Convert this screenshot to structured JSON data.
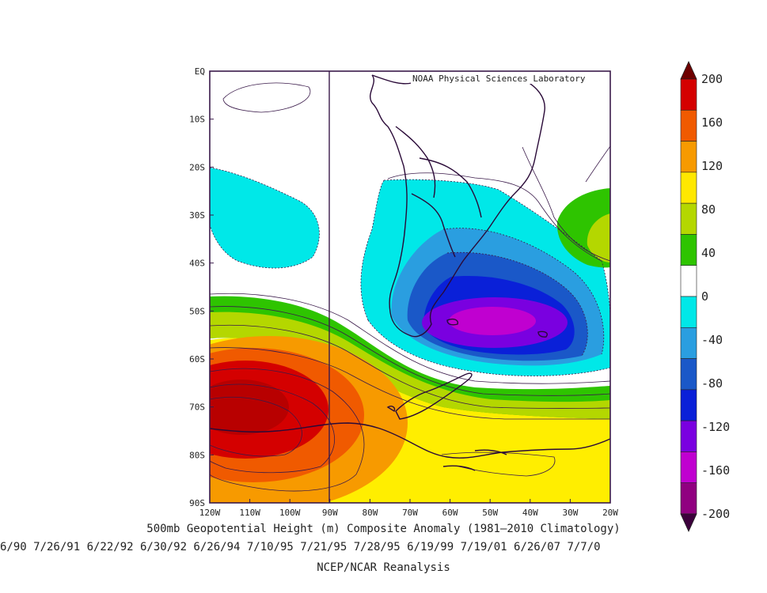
{
  "map": {
    "credit": "NOAA Physical Sciences Laboratory",
    "lat_labels": [
      "EQ",
      "10S",
      "20S",
      "30S",
      "40S",
      "50S",
      "60S",
      "70S",
      "80S",
      "90S"
    ],
    "lon_labels": [
      "120W",
      "110W",
      "100W",
      "90W",
      "80W",
      "70W",
      "60W",
      "50W",
      "40W",
      "30W",
      "20W"
    ],
    "title": "500mb Geopotential Height (m) Composite Anomaly (1981–2010 Climatology)",
    "dates": "6/90 7/26/91 6/22/92 6/30/92 6/26/94 7/10/95 7/21/95 7/28/95 6/19/99 7/19/01 6/26/07 7/7/0",
    "source": "NCEP/NCAR Reanalysis"
  },
  "colorbar": {
    "labels": [
      "200",
      "160",
      "120",
      "80",
      "40",
      "0",
      "-40",
      "-80",
      "-120",
      "-160",
      "-200"
    ],
    "colors": [
      "#6e0000",
      "#d40000",
      "#f05a00",
      "#f79a00",
      "#ffe800",
      "#b4d700",
      "#2ec400",
      "#ffffff",
      "#00e8e8",
      "#2a9ee0",
      "#1a58c8",
      "#0a20d8",
      "#7a00e0",
      "#c000d0",
      "#900080",
      "#3c003c"
    ]
  }
}
